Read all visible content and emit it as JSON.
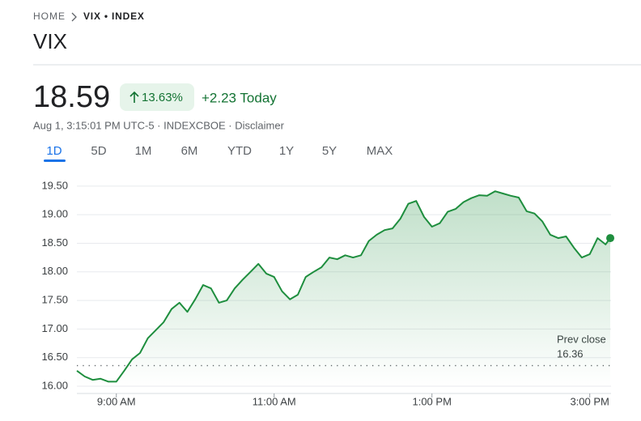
{
  "breadcrumb": {
    "home": "HOME",
    "current": "VIX • INDEX"
  },
  "quote": {
    "symbol": "VIX",
    "price": "18.59",
    "change_percent": "13.63%",
    "change_today": "+2.23 Today",
    "meta": "Aug 1, 3:15:01 PM UTC-5 · INDEXCBOE · Disclaimer"
  },
  "tabs": [
    "1D",
    "5D",
    "1M",
    "6M",
    "YTD",
    "1Y",
    "5Y",
    "MAX"
  ],
  "chart_data": {
    "type": "line",
    "x": [
      8.5,
      8.6,
      8.7,
      8.8,
      8.9,
      9.0,
      9.1,
      9.2,
      9.3,
      9.4,
      9.5,
      9.6,
      9.7,
      9.8,
      9.9,
      10.0,
      10.1,
      10.2,
      10.3,
      10.4,
      10.5,
      10.6,
      10.7,
      10.8,
      10.9,
      11.0,
      11.1,
      11.2,
      11.3,
      11.4,
      11.5,
      11.6,
      11.7,
      11.8,
      11.9,
      12.0,
      12.1,
      12.2,
      12.3,
      12.4,
      12.5,
      12.6,
      12.7,
      12.8,
      12.9,
      13.0,
      13.1,
      13.2,
      13.3,
      13.4,
      13.5,
      13.6,
      13.7,
      13.8,
      13.9,
      14.0,
      14.1,
      14.2,
      14.3,
      14.4,
      14.5,
      14.6,
      14.7,
      14.8,
      14.9,
      15.0,
      15.1,
      15.2,
      15.26
    ],
    "series": [
      {
        "color": "#1e8e3e",
        "values": [
          16.27,
          16.17,
          16.11,
          16.13,
          16.08,
          16.08,
          16.27,
          16.47,
          16.58,
          16.84,
          16.98,
          17.12,
          17.35,
          17.46,
          17.3,
          17.52,
          17.77,
          17.71,
          17.46,
          17.5,
          17.71,
          17.86,
          18.0,
          18.14,
          17.97,
          17.91,
          17.66,
          17.52,
          17.6,
          17.91,
          18.0,
          18.08,
          18.25,
          18.22,
          18.29,
          18.25,
          18.29,
          18.54,
          18.65,
          18.73,
          18.76,
          18.93,
          19.19,
          19.24,
          18.96,
          18.79,
          18.85,
          19.05,
          19.1,
          19.22,
          19.29,
          19.34,
          19.33,
          19.41,
          19.37,
          19.33,
          19.3,
          19.06,
          19.02,
          18.88,
          18.65,
          18.59,
          18.62,
          18.42,
          18.25,
          18.31,
          18.59,
          18.48,
          18.59
        ]
      }
    ],
    "xlim": [
      8.5,
      15.27
    ],
    "xticks": [
      {
        "value": 9,
        "label": "9:00 AM"
      },
      {
        "value": 11,
        "label": "11:00 AM"
      },
      {
        "value": 13,
        "label": "1:00 PM"
      },
      {
        "value": 15,
        "label": "3:00 PM"
      }
    ],
    "ylim": [
      16.0,
      19.71
    ],
    "yticks": [
      {
        "value": 16,
        "label": "16.00"
      },
      {
        "value": 16.5,
        "label": "16.50"
      },
      {
        "value": 17,
        "label": "17.00"
      },
      {
        "value": 17.5,
        "label": "17.50"
      },
      {
        "value": 18,
        "label": "18.00"
      },
      {
        "value": 18.5,
        "label": "18.50"
      },
      {
        "value": 19,
        "label": "19.00"
      },
      {
        "value": 19.5,
        "label": "19.50"
      }
    ],
    "grid": true,
    "prev_close": {
      "label": "Prev close",
      "value": 16.36
    }
  }
}
